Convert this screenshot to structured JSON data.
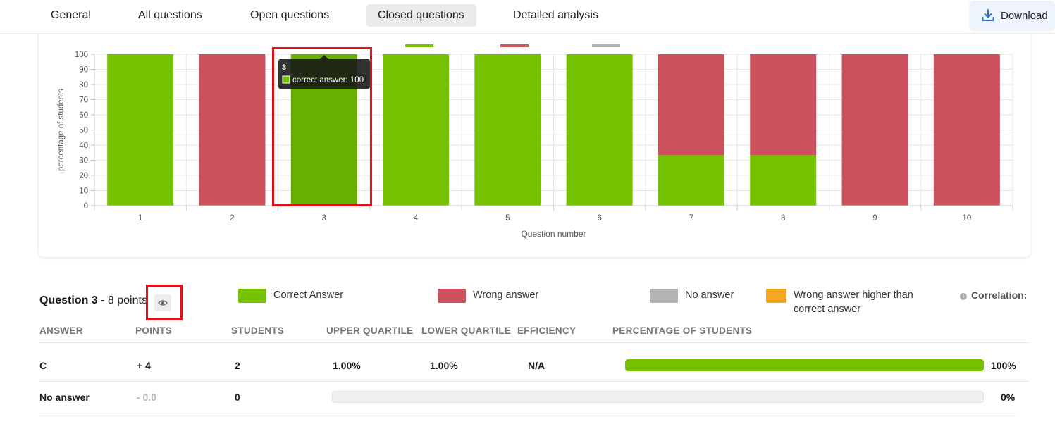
{
  "nav": {
    "tabs": [
      {
        "label": "General"
      },
      {
        "label": "All questions"
      },
      {
        "label": "Open questions"
      },
      {
        "label": "Closed questions",
        "active": true
      },
      {
        "label": "Detailed analysis"
      }
    ],
    "download_label": "Download"
  },
  "colors": {
    "correct": "#76c200",
    "wrong": "#cd515c",
    "no_answer": "#b5b5b5",
    "wrong_higher": "#f5a623",
    "highlight": "#e0101a"
  },
  "chart_data": {
    "type": "bar",
    "stacked": true,
    "categories": [
      "1",
      "2",
      "3",
      "4",
      "5",
      "6",
      "7",
      "8",
      "9",
      "10"
    ],
    "series": [
      {
        "name": "correct answer",
        "values": [
          100,
          0,
          100,
          100,
          100,
          100,
          33.3,
          33.3,
          0,
          0
        ]
      },
      {
        "name": "",
        "values": [
          0,
          100,
          0,
          0,
          0,
          0,
          66.7,
          66.7,
          100,
          100
        ]
      }
    ],
    "xlabel": "Question number",
    "ylabel": "percentage of students",
    "ylim": [
      0,
      100
    ],
    "yticks": [
      "0",
      "10",
      "20",
      "30",
      "40",
      "50",
      "60",
      "70",
      "80",
      "90",
      "100"
    ],
    "grid": true,
    "legend": "top",
    "tooltip": {
      "title": "3",
      "text": "correct answer: 100"
    }
  },
  "question": {
    "title": "Question 3 -",
    "points": "8 points",
    "legend": [
      {
        "label": "Correct Answer"
      },
      {
        "label": "Wrong answer"
      },
      {
        "label": "No answer"
      },
      {
        "label_line1": "Wrong answer higher than",
        "label_line2": "correct answer"
      }
    ],
    "correlation_label": "Correlation:"
  },
  "table": {
    "headers": [
      "ANSWER",
      "POINTS",
      "STUDENTS",
      "UPPER QUARTILE",
      "LOWER QUARTILE",
      "EFFICIENCY",
      "PERCENTAGE OF STUDENTS"
    ],
    "rows": [
      {
        "answer": "C",
        "points": "+ 4",
        "students": "2",
        "upper": "1.00%",
        "lower": "1.00%",
        "efficiency": "N/A",
        "pct": "100%",
        "pct_value": 100
      },
      {
        "answer": "No answer",
        "points": "- 0.0",
        "students": "0",
        "upper": "",
        "lower": "",
        "efficiency": "",
        "pct": "0%",
        "pct_value": 0
      }
    ]
  }
}
